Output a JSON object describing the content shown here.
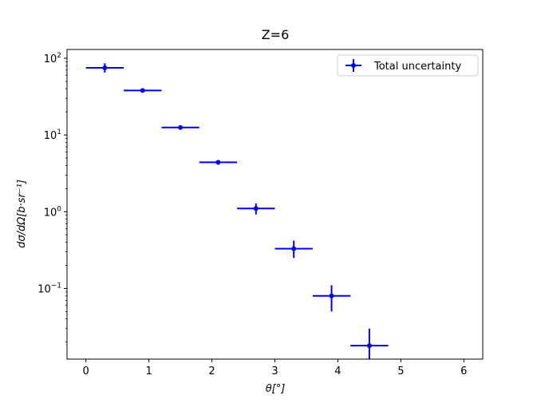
{
  "chart_data": {
    "type": "scatter",
    "title": "Z=6",
    "xlabel": "θ[°]",
    "ylabel": "dσ/dΩ[b·sr⁻¹]",
    "xlim": [
      -0.3,
      6.3
    ],
    "ylim": [
      0.012,
      130
    ],
    "yscale": "log",
    "x_ticks": [
      0,
      1,
      2,
      3,
      4,
      5,
      6
    ],
    "y_ticks": [
      {
        "value": 0.1,
        "base": "10",
        "exp": "−1"
      },
      {
        "value": 1,
        "base": "10",
        "exp": "0"
      },
      {
        "value": 10,
        "base": "10",
        "exp": "1"
      },
      {
        "value": 100,
        "base": "10",
        "exp": "2"
      }
    ],
    "grid": false,
    "legend_position": "top-right",
    "series": [
      {
        "name": "Total uncertainty",
        "color": "#0000ff",
        "points": [
          {
            "x": 0.3,
            "y": 75,
            "xerr": 0.3,
            "ylo": 65,
            "yhi": 86
          },
          {
            "x": 0.9,
            "y": 38,
            "xerr": 0.3,
            "ylo": 36,
            "yhi": 40
          },
          {
            "x": 1.5,
            "y": 12.5,
            "xerr": 0.3,
            "ylo": 12,
            "yhi": 13
          },
          {
            "x": 2.1,
            "y": 4.4,
            "xerr": 0.3,
            "ylo": 4.1,
            "yhi": 4.7
          },
          {
            "x": 2.7,
            "y": 1.1,
            "xerr": 0.3,
            "ylo": 0.92,
            "yhi": 1.28
          },
          {
            "x": 3.3,
            "y": 0.33,
            "xerr": 0.3,
            "ylo": 0.25,
            "yhi": 0.42
          },
          {
            "x": 3.9,
            "y": 0.08,
            "xerr": 0.3,
            "ylo": 0.05,
            "yhi": 0.11
          },
          {
            "x": 4.5,
            "y": 0.018,
            "xerr": 0.3,
            "ylo": 0.012,
            "yhi": 0.03
          }
        ]
      }
    ]
  }
}
